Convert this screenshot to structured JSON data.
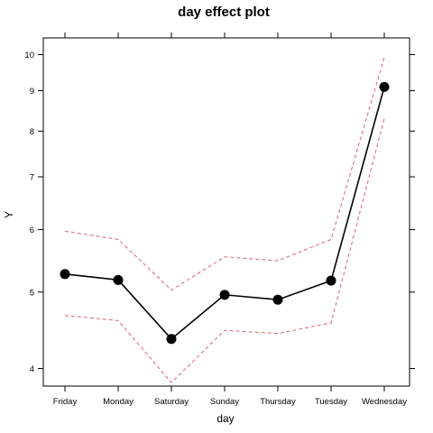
{
  "chart_data": {
    "type": "line",
    "title": "day effect plot",
    "xlabel": "day",
    "ylabel": "Y",
    "categories": [
      "Friday",
      "Monday",
      "Saturday",
      "Sunday",
      "Thursday",
      "Tuesday",
      "Wednesday"
    ],
    "yscale": "log",
    "ylim": [
      3.8,
      10.5
    ],
    "yticks": [
      4,
      5,
      6,
      7,
      8,
      9,
      10
    ],
    "grid": false,
    "series": [
      {
        "values": [
          5.27,
          5.18,
          4.36,
          4.96,
          4.89,
          5.17,
          9.1
        ],
        "color": "#000000",
        "style": "solid",
        "markers": true
      },
      {
        "values": [
          5.97,
          5.83,
          5.03,
          5.54,
          5.48,
          5.83,
          9.92
        ],
        "color": "#e06070",
        "style": "dashed",
        "markers": false
      },
      {
        "values": [
          4.67,
          4.6,
          3.84,
          4.47,
          4.43,
          4.57,
          8.3
        ],
        "color": "#e06070",
        "style": "dashed",
        "markers": false
      }
    ]
  }
}
